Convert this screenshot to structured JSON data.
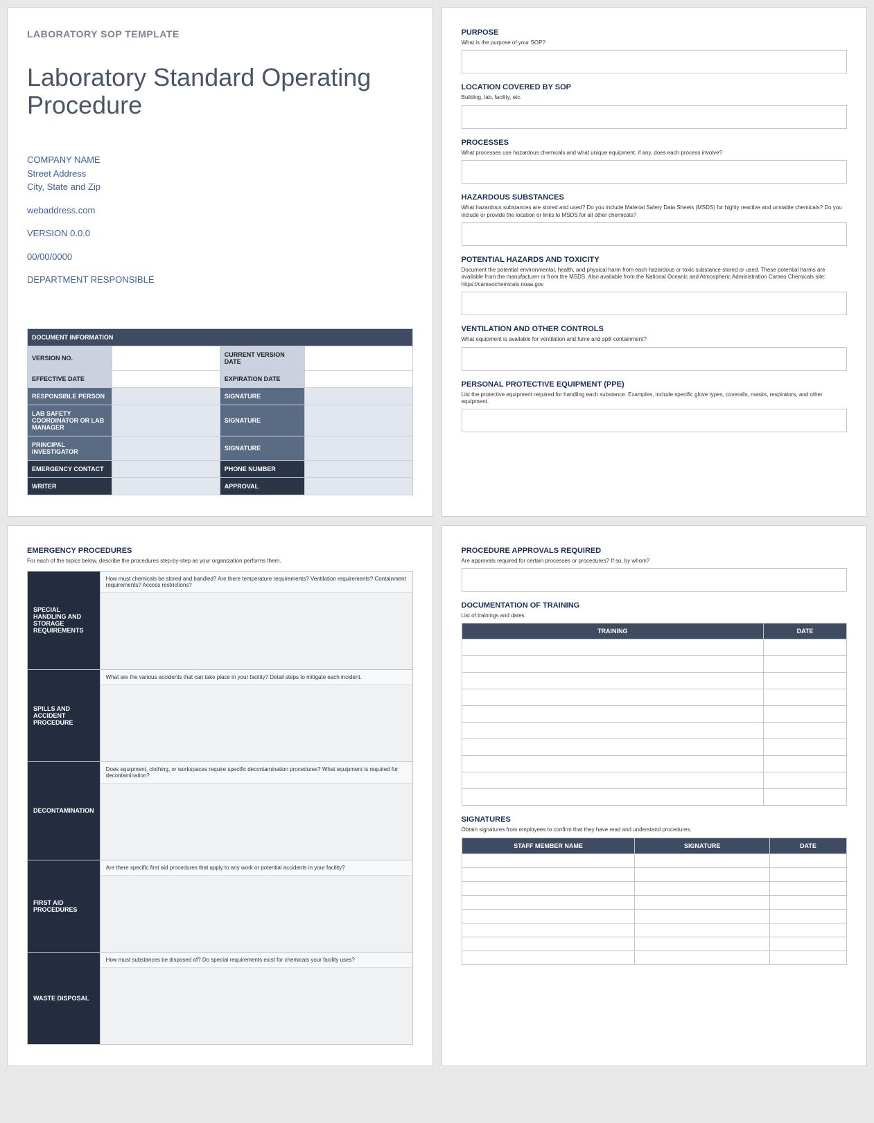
{
  "colors": {
    "page_bg": "#ffffff",
    "body_bg": "#e8e8e8",
    "border": "#c0c6ce",
    "header_dark": "#3e4b61",
    "label_dark": "#2a3547",
    "label_mid": "#5a6b84",
    "label_light": "#c9d2de",
    "emerg_dark": "#232d3f",
    "title_gray": "#4a5568",
    "meta_blue": "#3960a0",
    "section_title": "#1a2e5a"
  },
  "fonts": {
    "main_title_size": 36,
    "section_title_size": 11,
    "desc_size": 8,
    "table_size": 9
  },
  "page1": {
    "template_label": "LABORATORY SOP TEMPLATE",
    "title": "Laboratory Standard Operating Procedure",
    "company": "COMPANY NAME",
    "street": "Street Address",
    "city": "City, State and Zip",
    "web": "webaddress.com",
    "version": "VERSION 0.0.0",
    "date": "00/00/0000",
    "dept": "DEPARTMENT RESPONSIBLE",
    "docinfo_header": "DOCUMENT INFORMATION",
    "rows": [
      {
        "l1": "VERSION NO.",
        "l2": "CURRENT VERSION DATE",
        "style": "lt"
      },
      {
        "l1": "EFFECTIVE DATE",
        "l2": "EXPIRATION DATE",
        "style": "lt"
      },
      {
        "l1": "RESPONSIBLE PERSON",
        "l2": "SIGNATURE",
        "style": "md"
      },
      {
        "l1": "LAB SAFETY COORDINATOR OR LAB MANAGER",
        "l2": "SIGNATURE",
        "style": "md"
      },
      {
        "l1": "PRINCIPAL INVESTIGATOR",
        "l2": "SIGNATURE",
        "style": "md"
      },
      {
        "l1": "EMERGENCY CONTACT",
        "l2": "PHONE NUMBER",
        "style": "dk"
      },
      {
        "l1": "WRITER",
        "l2": "APPROVAL",
        "style": "dk"
      }
    ]
  },
  "page2": {
    "sections": [
      {
        "title": "PURPOSE",
        "desc": "What is the purpose of your SOP?"
      },
      {
        "title": "LOCATION COVERED BY SOP",
        "desc": "Building, lab, facility, etc."
      },
      {
        "title": "PROCESSES",
        "desc": "What processes use hazardous chemicals and what unique equipment, if any, does each process involve?"
      },
      {
        "title": "HAZARDOUS SUBSTANCES",
        "desc": "What hazardous substances are stored and used? Do you include Material Safety Data Sheets (MSDS) for highly reactive and unstable chemicals? Do you include or provide the location or links to MSDS for all other chemicals?"
      },
      {
        "title": "POTENTIAL HAZARDS AND TOXICITY",
        "desc": "Document the potential environmental, health, and physical harm from each hazardous or toxic substance stored or used. These potential harms are available from the manufacturer or from the MSDS. Also available from the National Oceanic and Atmospheric Administration Cameo Chemicals site: https://cameochemicals.noaa.gov"
      },
      {
        "title": "VENTILATION AND OTHER CONTROLS",
        "desc": "What equipment is available for ventilation and fume and spill containment?"
      },
      {
        "title": "PERSONAL PROTECTIVE EQUIPMENT (PPE)",
        "desc": "List the protective equipment required for handling each substance. Examples, include specific glove types, coveralls, masks, respirators, and other equipment."
      }
    ]
  },
  "page3": {
    "title": "EMERGENCY PROCEDURES",
    "desc": "For each of the topics below, describe the procedures step-by-step as your organization performs them.",
    "rows": [
      {
        "label": "SPECIAL HANDLING AND STORAGE REQUIREMENTS",
        "q": "How must chemicals be stored and handled? Are there temperature requirements? Ventilation requirements? Containment requirements? Access restrictions?"
      },
      {
        "label": "SPILLS AND ACCIDENT PROCEDURE",
        "q": "What are the various accidents that can take place in your facility? Detail steps to mitigate each incident."
      },
      {
        "label": "DECONTAMINATION",
        "q": "Does equipment, clothing, or workspaces require specific decontamination procedures? What equipment is required for decontamination?"
      },
      {
        "label": "FIRST AID PROCEDURES",
        "q": "Are there specific first aid procedures that apply to any work or potential accidents in your facility?"
      },
      {
        "label": "WASTE DISPOSAL",
        "q": "How must substances be disposed of? Do special requirements exist for chemicals your facility uses?"
      }
    ]
  },
  "page4": {
    "approvals": {
      "title": "PROCEDURE APPROVALS REQUIRED",
      "desc": "Are approvals required for certain processes or procedures?  If so, by whom?"
    },
    "training": {
      "title": "DOCUMENTATION OF TRAINING",
      "desc": "List of trainings and dates",
      "col1": "TRAINING",
      "col2": "DATE",
      "rows": 10
    },
    "signatures": {
      "title": "SIGNATURES",
      "desc": "Obtain signatures from employees to confirm that they have read and understand procedures.",
      "col1": "STAFF MEMBER NAME",
      "col2": "SIGNATURE",
      "col3": "DATE",
      "rows": 8
    }
  }
}
